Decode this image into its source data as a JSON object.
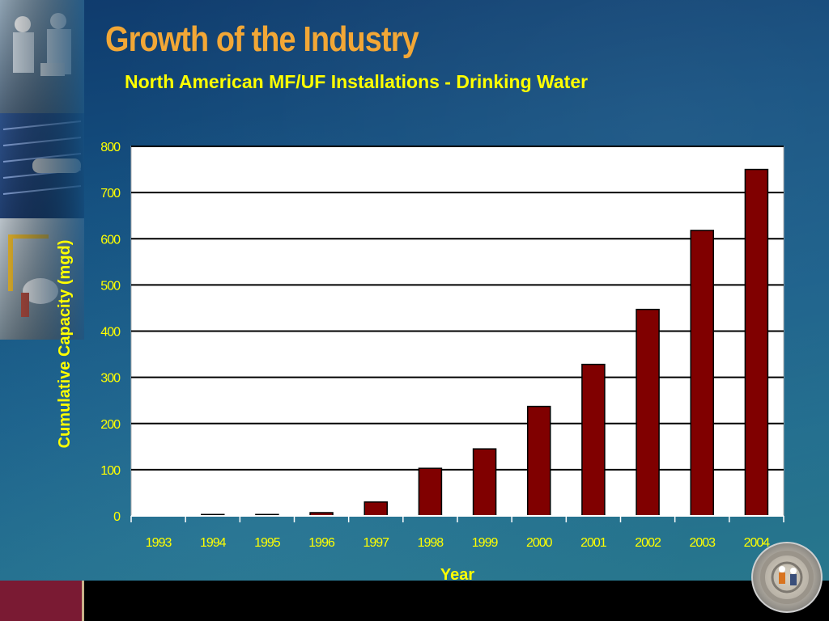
{
  "slide": {
    "title": "Growth of the Industry"
  },
  "chart_data": {
    "type": "bar",
    "title": "North American MF/UF Installations - Drinking Water",
    "xlabel": "Year",
    "ylabel": "Cumulative Capacity (mgd)",
    "categories": [
      "1993",
      "1994",
      "1995",
      "1996",
      "1997",
      "1998",
      "1999",
      "2000",
      "2001",
      "2002",
      "2003",
      "2004"
    ],
    "values": [
      0,
      3,
      3,
      7,
      30,
      103,
      145,
      237,
      328,
      447,
      618,
      750
    ],
    "ylim": [
      0,
      800
    ],
    "yticks": [
      0,
      100,
      200,
      300,
      400,
      500,
      600,
      700,
      800
    ],
    "ytick_labels": [
      "0",
      "100",
      "200",
      "300",
      "400",
      "500",
      "600",
      "700",
      "800"
    ],
    "grid": true,
    "legend": false,
    "colors": {
      "bar": "#800000",
      "plot_background": "#ffffff",
      "text": "#ffff00",
      "title_accent": "#f2a736"
    }
  }
}
